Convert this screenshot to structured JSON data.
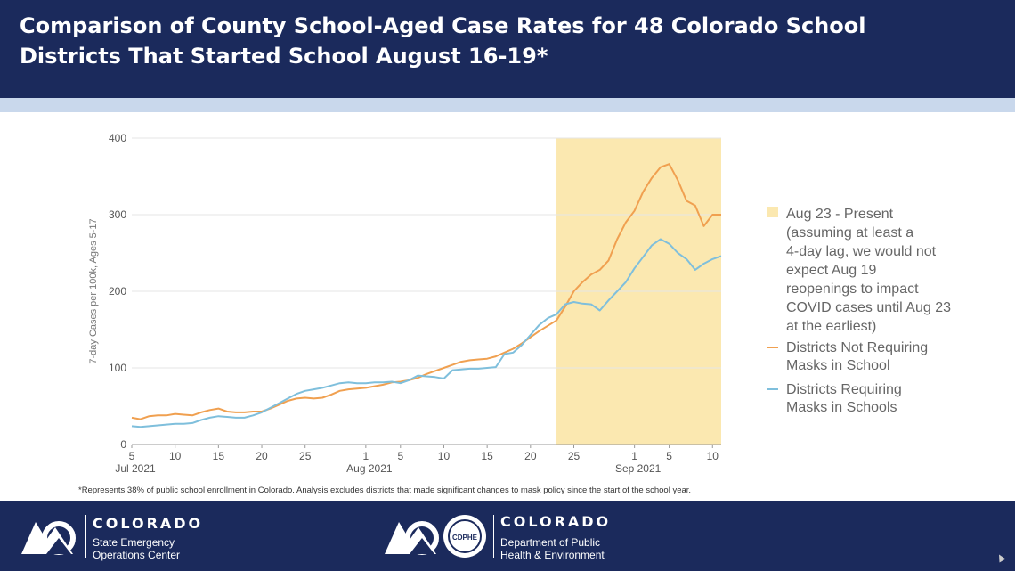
{
  "header": {
    "title_line1": "Comparison of County School-Aged Case Rates for 48 Colorado School",
    "title_line2": "Districts That Started School August 16-19*"
  },
  "footnote": "*Represents 38% of public school enrollment in Colorado. Analysis excludes districts that made significant changes to mask policy since the start of the school year.",
  "footer": {
    "left_logo": {
      "name": "COLORADO",
      "sub_line1": "State Emergency",
      "sub_line2": "Operations Center"
    },
    "right_logo": {
      "name": "COLORADO",
      "sub_line1": "Department of Public",
      "sub_line2": "Health & Environment",
      "seal_text": "CDPHE"
    }
  },
  "colors": {
    "header_bg": "#1b2a5c",
    "stripe": "#c9d8ec",
    "highlight": "#fbe8b0",
    "not_requiring": "#f0a050",
    "requiring": "#7fbfdc",
    "grid": "#e6e6e6"
  },
  "chart_data": {
    "type": "line",
    "ylabel": "7-day Cases per 100k, Ages 5-17",
    "xlabel": "",
    "ylim": [
      0,
      400
    ],
    "yticks": [
      0,
      100,
      200,
      300,
      400
    ],
    "x_start": "2021-07-05",
    "x_end": "2021-09-11",
    "xticks": [
      {
        "date": "2021-07-05",
        "label": "5",
        "month_label": "Jul 2021"
      },
      {
        "date": "2021-07-10",
        "label": "10"
      },
      {
        "date": "2021-07-15",
        "label": "15"
      },
      {
        "date": "2021-07-20",
        "label": "20"
      },
      {
        "date": "2021-07-25",
        "label": "25"
      },
      {
        "date": "2021-08-01",
        "label": "1",
        "month_label": "Aug 2021"
      },
      {
        "date": "2021-08-05",
        "label": "5"
      },
      {
        "date": "2021-08-10",
        "label": "10"
      },
      {
        "date": "2021-08-15",
        "label": "15"
      },
      {
        "date": "2021-08-20",
        "label": "20"
      },
      {
        "date": "2021-08-25",
        "label": "25"
      },
      {
        "date": "2021-09-01",
        "label": "1",
        "month_label": "Sep 2021"
      },
      {
        "date": "2021-09-05",
        "label": "5"
      },
      {
        "date": "2021-09-10",
        "label": "10"
      }
    ],
    "highlight": {
      "from": "2021-08-23",
      "to": "2021-09-11",
      "legend_lines": [
        "Aug 23 - Present",
        "(assuming at least a",
        "4-day lag, we would not",
        "expect Aug 19",
        "reopenings to impact",
        "COVID cases until Aug 23",
        "at the earliest)"
      ]
    },
    "series": [
      {
        "name": "Districts Not Requiring Masks in School",
        "legend_lines": [
          "Districts Not Requiring",
          "Masks in School"
        ],
        "color": "#f0a050",
        "points": [
          [
            "2021-07-05",
            35
          ],
          [
            "2021-07-06",
            33
          ],
          [
            "2021-07-07",
            37
          ],
          [
            "2021-07-08",
            38
          ],
          [
            "2021-07-09",
            38
          ],
          [
            "2021-07-10",
            40
          ],
          [
            "2021-07-11",
            39
          ],
          [
            "2021-07-12",
            38
          ],
          [
            "2021-07-13",
            42
          ],
          [
            "2021-07-14",
            45
          ],
          [
            "2021-07-15",
            47
          ],
          [
            "2021-07-16",
            43
          ],
          [
            "2021-07-17",
            42
          ],
          [
            "2021-07-18",
            42
          ],
          [
            "2021-07-19",
            43
          ],
          [
            "2021-07-20",
            43
          ],
          [
            "2021-07-21",
            47
          ],
          [
            "2021-07-22",
            52
          ],
          [
            "2021-07-23",
            57
          ],
          [
            "2021-07-24",
            60
          ],
          [
            "2021-07-25",
            61
          ],
          [
            "2021-07-26",
            60
          ],
          [
            "2021-07-27",
            61
          ],
          [
            "2021-07-28",
            65
          ],
          [
            "2021-07-29",
            70
          ],
          [
            "2021-07-30",
            72
          ],
          [
            "2021-07-31",
            73
          ],
          [
            "2021-08-01",
            74
          ],
          [
            "2021-08-02",
            76
          ],
          [
            "2021-08-03",
            78
          ],
          [
            "2021-08-04",
            81
          ],
          [
            "2021-08-05",
            82
          ],
          [
            "2021-08-06",
            84
          ],
          [
            "2021-08-07",
            87
          ],
          [
            "2021-08-08",
            92
          ],
          [
            "2021-08-09",
            96
          ],
          [
            "2021-08-10",
            100
          ],
          [
            "2021-08-11",
            104
          ],
          [
            "2021-08-12",
            108
          ],
          [
            "2021-08-13",
            110
          ],
          [
            "2021-08-14",
            111
          ],
          [
            "2021-08-15",
            112
          ],
          [
            "2021-08-16",
            115
          ],
          [
            "2021-08-17",
            120
          ],
          [
            "2021-08-18",
            125
          ],
          [
            "2021-08-19",
            132
          ],
          [
            "2021-08-20",
            140
          ],
          [
            "2021-08-21",
            148
          ],
          [
            "2021-08-22",
            155
          ],
          [
            "2021-08-23",
            162
          ],
          [
            "2021-08-24",
            180
          ],
          [
            "2021-08-25",
            200
          ],
          [
            "2021-08-26",
            212
          ],
          [
            "2021-08-27",
            222
          ],
          [
            "2021-08-28",
            228
          ],
          [
            "2021-08-29",
            240
          ],
          [
            "2021-08-30",
            268
          ],
          [
            "2021-08-31",
            290
          ],
          [
            "2021-09-01",
            305
          ],
          [
            "2021-09-02",
            330
          ],
          [
            "2021-09-03",
            348
          ],
          [
            "2021-09-04",
            362
          ],
          [
            "2021-09-05",
            366
          ],
          [
            "2021-09-06",
            345
          ],
          [
            "2021-09-07",
            318
          ],
          [
            "2021-09-08",
            312
          ],
          [
            "2021-09-09",
            285
          ],
          [
            "2021-09-10",
            300
          ],
          [
            "2021-09-11",
            300
          ]
        ]
      },
      {
        "name": "Districts Requiring Masks in Schools",
        "legend_lines": [
          "Districts Requiring",
          "Masks in Schools"
        ],
        "color": "#7fbfdc",
        "points": [
          [
            "2021-07-05",
            24
          ],
          [
            "2021-07-06",
            23
          ],
          [
            "2021-07-07",
            24
          ],
          [
            "2021-07-08",
            25
          ],
          [
            "2021-07-09",
            26
          ],
          [
            "2021-07-10",
            27
          ],
          [
            "2021-07-11",
            27
          ],
          [
            "2021-07-12",
            28
          ],
          [
            "2021-07-13",
            32
          ],
          [
            "2021-07-14",
            35
          ],
          [
            "2021-07-15",
            37
          ],
          [
            "2021-07-16",
            36
          ],
          [
            "2021-07-17",
            35
          ],
          [
            "2021-07-18",
            35
          ],
          [
            "2021-07-19",
            38
          ],
          [
            "2021-07-20",
            42
          ],
          [
            "2021-07-21",
            48
          ],
          [
            "2021-07-22",
            54
          ],
          [
            "2021-07-23",
            60
          ],
          [
            "2021-07-24",
            66
          ],
          [
            "2021-07-25",
            70
          ],
          [
            "2021-07-26",
            72
          ],
          [
            "2021-07-27",
            74
          ],
          [
            "2021-07-28",
            77
          ],
          [
            "2021-07-29",
            80
          ],
          [
            "2021-07-30",
            81
          ],
          [
            "2021-07-31",
            80
          ],
          [
            "2021-08-01",
            80
          ],
          [
            "2021-08-02",
            81
          ],
          [
            "2021-08-03",
            81
          ],
          [
            "2021-08-04",
            82
          ],
          [
            "2021-08-05",
            80
          ],
          [
            "2021-08-06",
            84
          ],
          [
            "2021-08-07",
            90
          ],
          [
            "2021-08-08",
            89
          ],
          [
            "2021-08-09",
            88
          ],
          [
            "2021-08-10",
            86
          ],
          [
            "2021-08-11",
            97
          ],
          [
            "2021-08-12",
            98
          ],
          [
            "2021-08-13",
            99
          ],
          [
            "2021-08-14",
            99
          ],
          [
            "2021-08-15",
            100
          ],
          [
            "2021-08-16",
            101
          ],
          [
            "2021-08-17",
            118
          ],
          [
            "2021-08-18",
            120
          ],
          [
            "2021-08-19",
            130
          ],
          [
            "2021-08-20",
            143
          ],
          [
            "2021-08-21",
            156
          ],
          [
            "2021-08-22",
            165
          ],
          [
            "2021-08-23",
            170
          ],
          [
            "2021-08-24",
            183
          ],
          [
            "2021-08-25",
            186
          ],
          [
            "2021-08-26",
            184
          ],
          [
            "2021-08-27",
            183
          ],
          [
            "2021-08-28",
            175
          ],
          [
            "2021-08-29",
            188
          ],
          [
            "2021-08-30",
            200
          ],
          [
            "2021-08-31",
            212
          ],
          [
            "2021-09-01",
            230
          ],
          [
            "2021-09-02",
            245
          ],
          [
            "2021-09-03",
            260
          ],
          [
            "2021-09-04",
            268
          ],
          [
            "2021-09-05",
            262
          ],
          [
            "2021-09-06",
            250
          ],
          [
            "2021-09-07",
            242
          ],
          [
            "2021-09-08",
            228
          ],
          [
            "2021-09-09",
            236
          ],
          [
            "2021-09-10",
            242
          ],
          [
            "2021-09-11",
            246
          ]
        ]
      }
    ],
    "grid": true,
    "legend_position": "right"
  }
}
